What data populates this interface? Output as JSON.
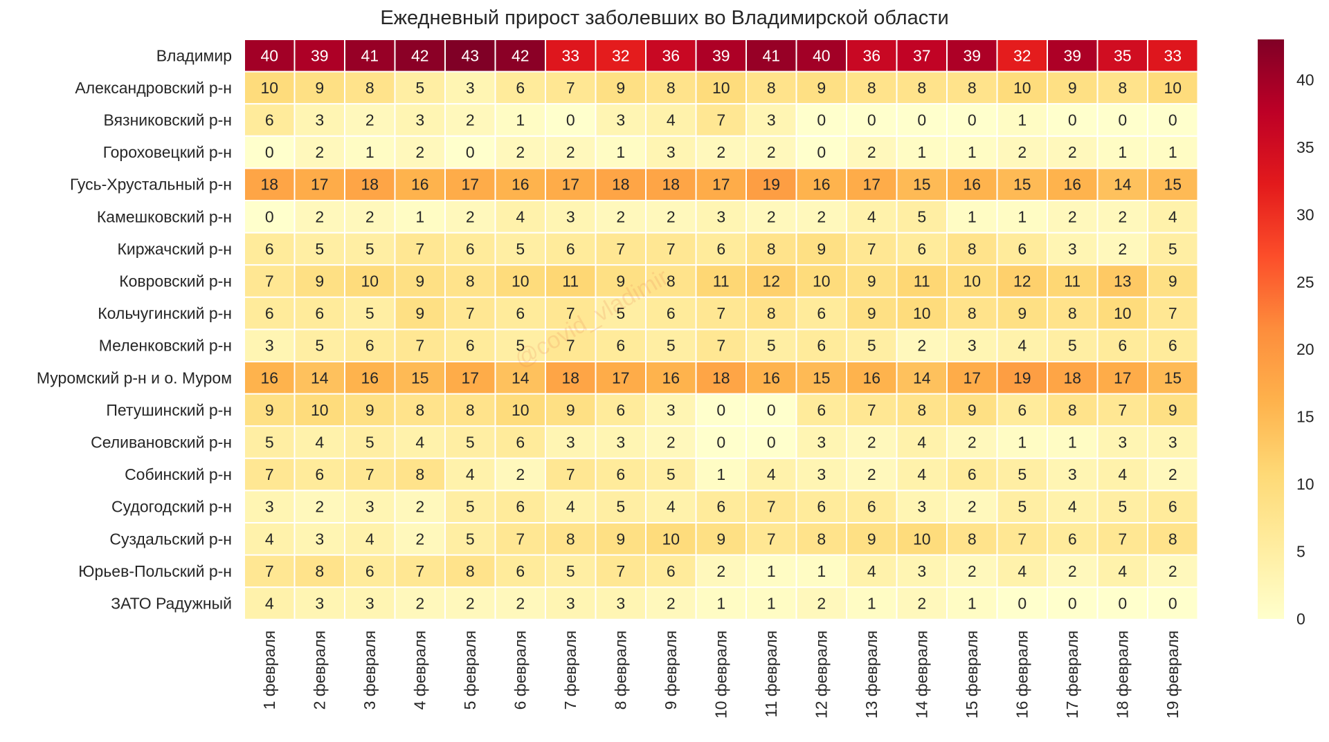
{
  "chart_data": {
    "type": "heatmap",
    "title": "Ежедневный прирост заболевших во Владимирской области",
    "rows": [
      "Владимир",
      "Александровский р-н",
      "Вязниковский р-н",
      "Гороховецкий р-н",
      "Гусь-Хрустальный р-н",
      "Камешковский р-н",
      "Киржачский р-н",
      "Ковровский р-н",
      "Кольчугинский р-н",
      "Меленковский р-н",
      "Муромский р-н и о. Муром",
      "Петушинский р-н",
      "Селивановский р-н",
      "Собинский р-н",
      "Судогодский р-н",
      "Суздальский р-н",
      "Юрьев-Польский р-н",
      "ЗАТО Радужный"
    ],
    "columns": [
      "1 февраля",
      "2 февраля",
      "3 февраля",
      "4 февраля",
      "5 февраля",
      "6 февраля",
      "7 февраля",
      "8 февраля",
      "9 февраля",
      "10 февраля",
      "11 февраля",
      "12 февраля",
      "13 февраля",
      "14 февраля",
      "15 февраля",
      "16 февраля",
      "17 февраля",
      "18 февраля",
      "19 февраля"
    ],
    "values": [
      [
        40,
        39,
        41,
        42,
        43,
        42,
        33,
        32,
        36,
        39,
        41,
        40,
        36,
        37,
        39,
        32,
        39,
        35,
        33
      ],
      [
        10,
        9,
        8,
        5,
        3,
        6,
        7,
        9,
        8,
        10,
        8,
        9,
        8,
        8,
        8,
        10,
        9,
        8,
        10
      ],
      [
        6,
        3,
        2,
        3,
        2,
        1,
        0,
        3,
        4,
        7,
        3,
        0,
        0,
        0,
        0,
        1,
        0,
        0,
        0
      ],
      [
        0,
        2,
        1,
        2,
        0,
        2,
        2,
        1,
        3,
        2,
        2,
        0,
        2,
        1,
        1,
        2,
        2,
        1,
        1
      ],
      [
        18,
        17,
        18,
        16,
        17,
        16,
        17,
        18,
        18,
        17,
        19,
        16,
        17,
        15,
        16,
        15,
        16,
        14,
        15
      ],
      [
        0,
        2,
        2,
        1,
        2,
        4,
        3,
        2,
        2,
        3,
        2,
        2,
        4,
        5,
        1,
        1,
        2,
        2,
        4
      ],
      [
        6,
        5,
        5,
        7,
        6,
        5,
        6,
        7,
        7,
        6,
        8,
        9,
        7,
        6,
        8,
        6,
        3,
        2,
        5
      ],
      [
        7,
        9,
        10,
        9,
        8,
        10,
        11,
        9,
        8,
        11,
        12,
        10,
        9,
        11,
        10,
        12,
        11,
        13,
        9
      ],
      [
        6,
        6,
        5,
        9,
        7,
        6,
        7,
        5,
        6,
        7,
        8,
        6,
        9,
        10,
        8,
        9,
        8,
        10,
        7
      ],
      [
        3,
        5,
        6,
        7,
        6,
        5,
        7,
        6,
        5,
        7,
        5,
        6,
        5,
        2,
        3,
        4,
        5,
        6,
        6
      ],
      [
        16,
        14,
        16,
        15,
        17,
        14,
        18,
        17,
        16,
        18,
        16,
        15,
        16,
        14,
        17,
        19,
        18,
        17,
        15
      ],
      [
        9,
        10,
        9,
        8,
        8,
        10,
        9,
        6,
        3,
        0,
        0,
        6,
        7,
        8,
        9,
        6,
        8,
        7,
        9
      ],
      [
        5,
        4,
        5,
        4,
        5,
        6,
        3,
        3,
        2,
        0,
        0,
        3,
        2,
        4,
        2,
        1,
        1,
        3,
        3
      ],
      [
        7,
        6,
        7,
        8,
        4,
        2,
        7,
        6,
        5,
        1,
        4,
        3,
        2,
        4,
        6,
        5,
        3,
        4,
        2
      ],
      [
        3,
        2,
        3,
        2,
        5,
        6,
        4,
        5,
        4,
        6,
        7,
        6,
        6,
        3,
        2,
        5,
        4,
        5,
        6
      ],
      [
        4,
        3,
        4,
        2,
        5,
        7,
        8,
        9,
        10,
        9,
        7,
        8,
        9,
        10,
        8,
        7,
        6,
        7,
        8
      ],
      [
        7,
        8,
        6,
        7,
        8,
        6,
        5,
        7,
        6,
        2,
        1,
        1,
        4,
        3,
        2,
        4,
        2,
        4,
        2
      ],
      [
        4,
        3,
        3,
        2,
        2,
        2,
        3,
        3,
        2,
        1,
        1,
        2,
        1,
        2,
        1,
        0,
        0,
        0,
        0
      ]
    ],
    "colorbar": {
      "min": 0,
      "max": 43,
      "ticks": [
        0,
        5,
        10,
        15,
        20,
        25,
        30,
        35,
        40
      ]
    },
    "colormap": "YlOrRd",
    "watermark": "@covid_vladimir"
  }
}
